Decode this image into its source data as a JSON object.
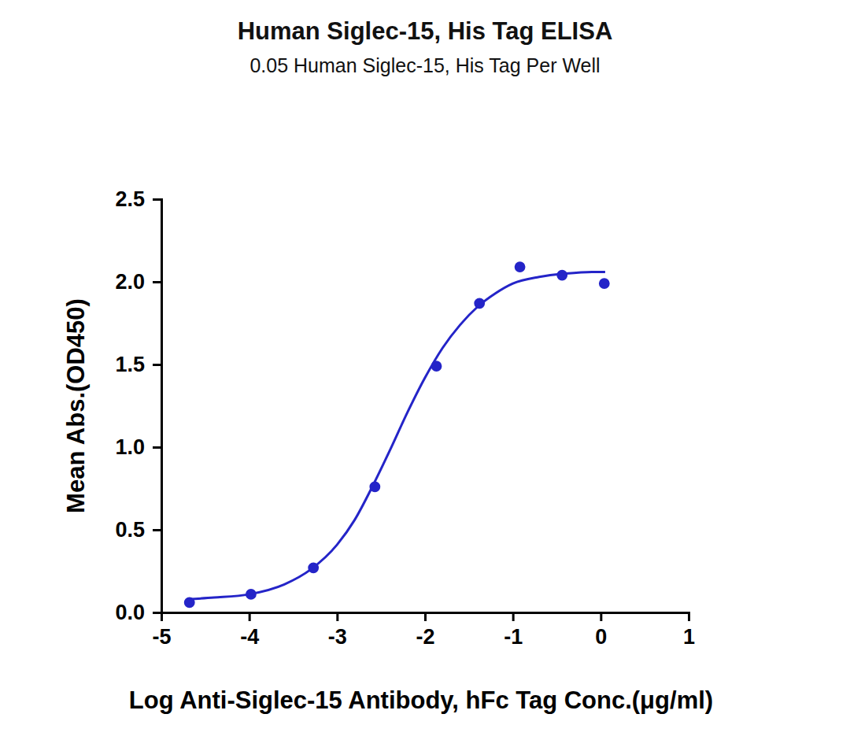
{
  "chart_data": {
    "type": "scatter",
    "title": "Human Siglec-15, His Tag ELISA",
    "subtitle": "0.05 Human Siglec-15, His Tag Per Well",
    "x_label": "Log Anti-Siglec-15 Antibody, hFc Tag Conc.(μg/ml)",
    "y_label": "Mean Abs.(OD450)",
    "xlim": [
      -5,
      1
    ],
    "ylim": [
      0,
      2.5
    ],
    "xticks": [
      -5,
      -4,
      -3,
      -2,
      -1,
      0,
      1
    ],
    "yticks": [
      {
        "value": 0,
        "label": "0.0"
      },
      {
        "value": 0.5,
        "label": "0.5"
      },
      {
        "value": 1,
        "label": "1.0"
      },
      {
        "value": 1.5,
        "label": "1.5"
      },
      {
        "value": 2,
        "label": "2.0"
      },
      {
        "value": 2.5,
        "label": "2.5"
      }
    ],
    "grid": false,
    "series": [
      {
        "type": "scatter",
        "marker": "circle",
        "color": "#2424c8",
        "x": [
          -4.68,
          -3.98,
          -3.27,
          -2.57,
          -1.87,
          -1.38,
          -0.92,
          -0.44,
          0.04
        ],
        "values": [
          0.06,
          0.11,
          0.27,
          0.76,
          1.49,
          1.87,
          2.09,
          2.04,
          1.99
        ]
      },
      {
        "type": "line",
        "line_style": "solid",
        "color": "#2424c8",
        "x": [
          -4.7,
          -4.4,
          -4.0,
          -3.6,
          -3.3,
          -3.0,
          -2.8,
          -2.6,
          -2.4,
          -2.2,
          -2.0,
          -1.8,
          -1.6,
          -1.4,
          -1.2,
          -1.0,
          -0.7,
          -0.4,
          -0.1,
          0.05
        ],
        "values": [
          0.08,
          0.09,
          0.11,
          0.17,
          0.26,
          0.41,
          0.56,
          0.76,
          0.98,
          1.21,
          1.42,
          1.6,
          1.74,
          1.85,
          1.93,
          1.99,
          2.03,
          2.05,
          2.06,
          2.06
        ]
      }
    ]
  }
}
